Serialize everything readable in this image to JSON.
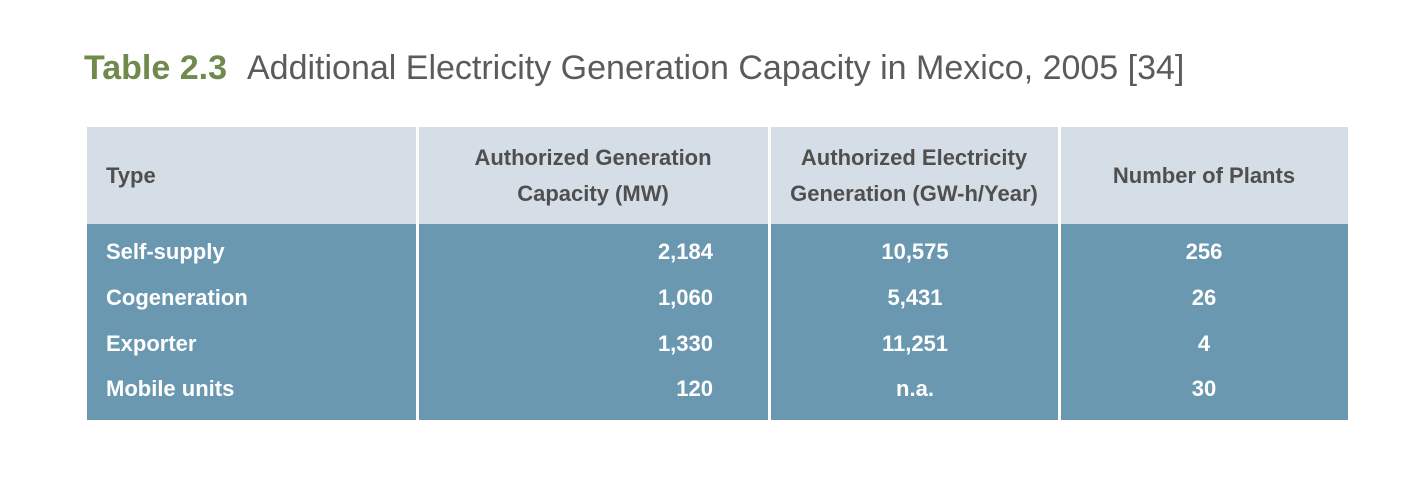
{
  "caption": {
    "label": "Table 2.3",
    "title": "Additional Electricity Generation Capacity in Mexico, 2005 [34]"
  },
  "table": {
    "headers": [
      "Type",
      "Authorized Generation Capacity (MW)",
      "Authorized Electricity Generation (GW-h/Year)",
      "Number of Plants"
    ],
    "header_lines": {
      "col1": [
        "Authorized Generation",
        "Capacity (MW)"
      ],
      "col2": [
        "Authorized Electricity",
        "Generation (GW-h/Year)"
      ]
    },
    "rows": [
      {
        "type": "Self-supply",
        "capacity": "2,184",
        "generation": "10,575",
        "plants": "256"
      },
      {
        "type": "Cogeneration",
        "capacity": "1,060",
        "generation": "5,431",
        "plants": "26"
      },
      {
        "type": "Exporter",
        "capacity": "1,330",
        "generation": "11,251",
        "plants": "4"
      },
      {
        "type": "Mobile units",
        "capacity": "120",
        "generation": "n.a.",
        "plants": "30"
      }
    ]
  },
  "colors": {
    "caption_label": "#6f8a4c",
    "caption_title": "#5b5b5b",
    "header_bg": "#d5dee6",
    "header_text": "#4f4f4f",
    "body_bg": "#6b98b1",
    "body_text": "#ffffff"
  }
}
